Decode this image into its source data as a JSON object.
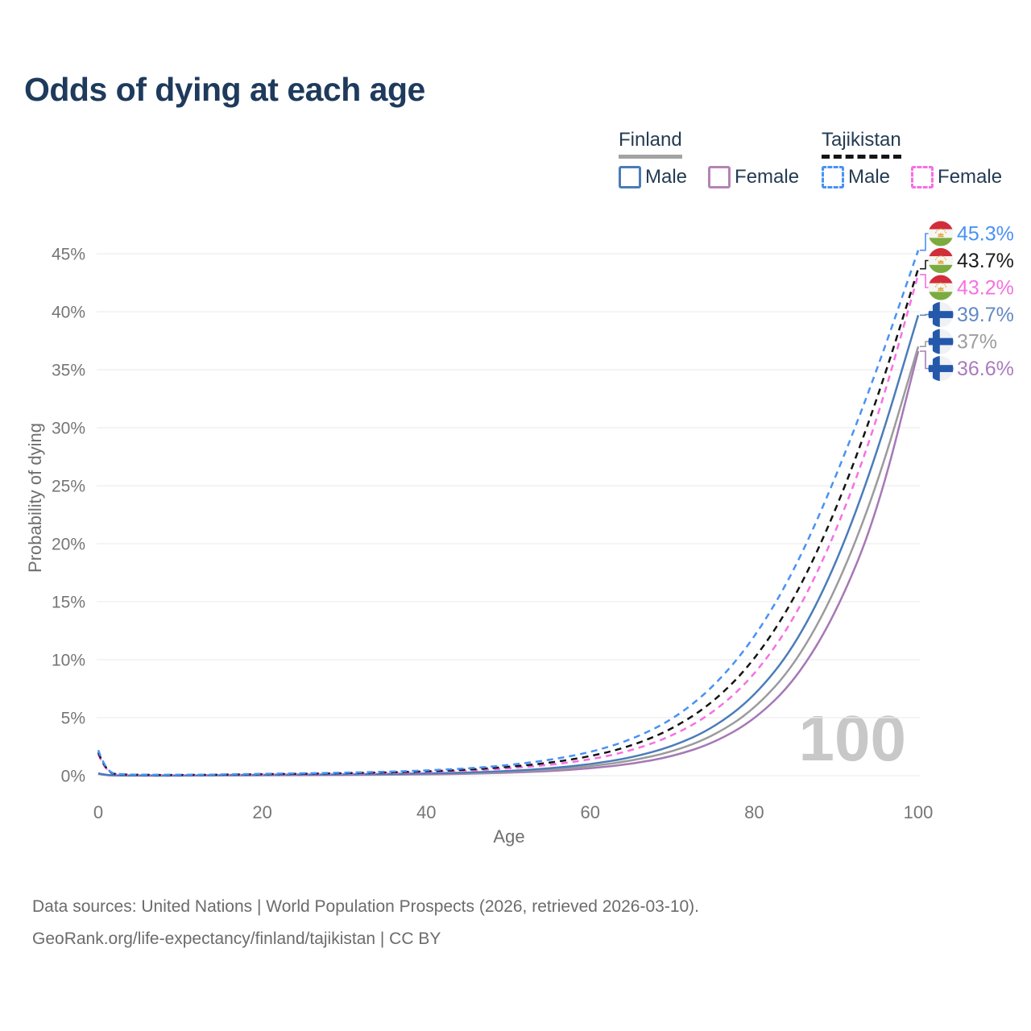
{
  "title": "Odds of dying at each age",
  "legend": {
    "groups": [
      {
        "country": "Finland",
        "line_style": "solid",
        "underline_color": "#a3a3a3",
        "items": [
          {
            "label": "Male",
            "color": "#4a7cb8"
          },
          {
            "label": "Female",
            "color": "#b583b5"
          }
        ]
      },
      {
        "country": "Tajikistan",
        "line_style": "dashed",
        "underline_color": "#141414",
        "items": [
          {
            "label": "Male",
            "color": "#4992f5"
          },
          {
            "label": "Female",
            "color": "#f670e2"
          }
        ]
      }
    ]
  },
  "chart_data": {
    "type": "line",
    "title": "Odds of dying at each age",
    "xlabel": "Age",
    "ylabel": "Probability of dying",
    "xlim": [
      0,
      100
    ],
    "ylim": [
      0,
      47.5
    ],
    "x_ticks": [
      0,
      20,
      40,
      60,
      80,
      100
    ],
    "y_ticks": [
      0,
      5,
      10,
      15,
      20,
      25,
      30,
      35,
      40,
      45
    ],
    "y_tick_suffix": "%",
    "grid": "horizontal",
    "legend_position": "top-right",
    "hover_age_label": "100",
    "ages": [
      0,
      1,
      3,
      5,
      10,
      15,
      20,
      25,
      30,
      35,
      40,
      45,
      50,
      55,
      60,
      65,
      70,
      75,
      80,
      85,
      90,
      95,
      100
    ],
    "series": [
      {
        "id": "tajikistan-male",
        "country": "Tajikistan",
        "sex": "Male",
        "dashed": true,
        "flag": "tajikistan",
        "line_color": "#4992f5",
        "label_color": "#4992f5",
        "end_label": "45.3%",
        "end_value": 45.3,
        "values": [
          2.2,
          0.25,
          0.11,
          0.08,
          0.07,
          0.1,
          0.16,
          0.2,
          0.26,
          0.33,
          0.45,
          0.62,
          0.9,
          1.35,
          2.0,
          3.1,
          4.8,
          7.6,
          11.8,
          17.8,
          25.8,
          35.0,
          45.3
        ]
      },
      {
        "id": "tajikistan-both",
        "country": "Tajikistan",
        "sex": "Both sexes",
        "dashed": true,
        "flag": "tajikistan",
        "line_color": "#141414",
        "label_color": "#1c1c1c",
        "end_label": "43.7%",
        "end_value": 43.7,
        "values": [
          2.0,
          0.22,
          0.1,
          0.07,
          0.06,
          0.08,
          0.13,
          0.16,
          0.21,
          0.27,
          0.37,
          0.51,
          0.75,
          1.1,
          1.65,
          2.55,
          4.0,
          6.3,
          9.9,
          15.3,
          22.9,
          32.4,
          43.7
        ]
      },
      {
        "id": "tajikistan-female",
        "country": "Tajikistan",
        "sex": "Female",
        "dashed": true,
        "flag": "tajikistan",
        "line_color": "#f670e2",
        "label_color": "#f670e2",
        "end_label": "43.2%",
        "end_value": 43.2,
        "values": [
          1.85,
          0.2,
          0.09,
          0.06,
          0.05,
          0.07,
          0.1,
          0.13,
          0.17,
          0.22,
          0.3,
          0.42,
          0.62,
          0.92,
          1.38,
          2.15,
          3.4,
          5.4,
          8.6,
          13.6,
          21.0,
          30.6,
          43.2
        ]
      },
      {
        "id": "finland-male",
        "country": "Finland",
        "sex": "Male",
        "dashed": false,
        "flag": "finland",
        "line_color": "#4a7cb8",
        "label_color": "#6289c5",
        "end_label": "39.7%",
        "end_value": 39.7,
        "values": [
          0.2,
          0.03,
          0.02,
          0.01,
          0.01,
          0.03,
          0.07,
          0.09,
          0.11,
          0.14,
          0.19,
          0.27,
          0.4,
          0.62,
          0.98,
          1.55,
          2.5,
          4.1,
          6.8,
          11.2,
          18.2,
          27.8,
          39.7
        ]
      },
      {
        "id": "finland-both",
        "country": "Finland",
        "sex": "Both sexes",
        "dashed": false,
        "flag": "finland",
        "line_color": "#9b9b9b",
        "label_color": "#9e9e9e",
        "end_label": "37%",
        "end_value": 37,
        "values": [
          0.18,
          0.03,
          0.01,
          0.01,
          0.01,
          0.02,
          0.05,
          0.07,
          0.08,
          0.11,
          0.15,
          0.21,
          0.32,
          0.5,
          0.8,
          1.28,
          2.05,
          3.4,
          5.7,
          9.6,
          16.0,
          25.0,
          37.0
        ]
      },
      {
        "id": "finland-female",
        "country": "Finland",
        "sex": "Female",
        "dashed": false,
        "flag": "finland",
        "line_color": "#a678b5",
        "label_color": "#a97cbc",
        "end_label": "36.6%",
        "end_value": 36.6,
        "values": [
          0.15,
          0.02,
          0.01,
          0.01,
          0.01,
          0.02,
          0.03,
          0.04,
          0.06,
          0.08,
          0.11,
          0.16,
          0.25,
          0.39,
          0.62,
          1.0,
          1.65,
          2.8,
          4.8,
          8.2,
          14.0,
          22.6,
          36.6
        ]
      }
    ],
    "flag_colors": {
      "finland_cross": "#2458ab",
      "finland_bg": "#eff1f3",
      "tajikistan_red": "#d12d3a",
      "tajikistan_white": "#f5f5f3",
      "tajikistan_green": "#7bab40",
      "tajikistan_gold": "#dfa63e"
    }
  },
  "footer": {
    "line1": "Data sources: United Nations | World Population Prospects (2026, retrieved 2026-03-10).",
    "line2": "GeoRank.org/life-expectancy/finland/tajikistan | CC BY"
  }
}
